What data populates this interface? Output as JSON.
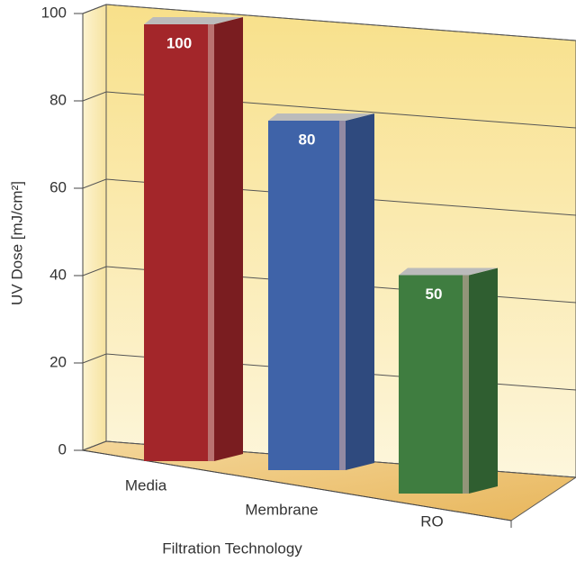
{
  "chart_data": {
    "type": "bar3d",
    "y_label": "UV Dose [mJ/cm²]",
    "x_label": "Filtration Technology",
    "categories": [
      "Media",
      "Membrane",
      "RO"
    ],
    "values": [
      100,
      80,
      50
    ],
    "colors": [
      "#a3262a",
      "#3f63a8",
      "#3f7d40"
    ],
    "ylim": [
      0,
      100
    ],
    "yticks": [
      0,
      20,
      40,
      60,
      80,
      100
    ],
    "grid": true
  }
}
